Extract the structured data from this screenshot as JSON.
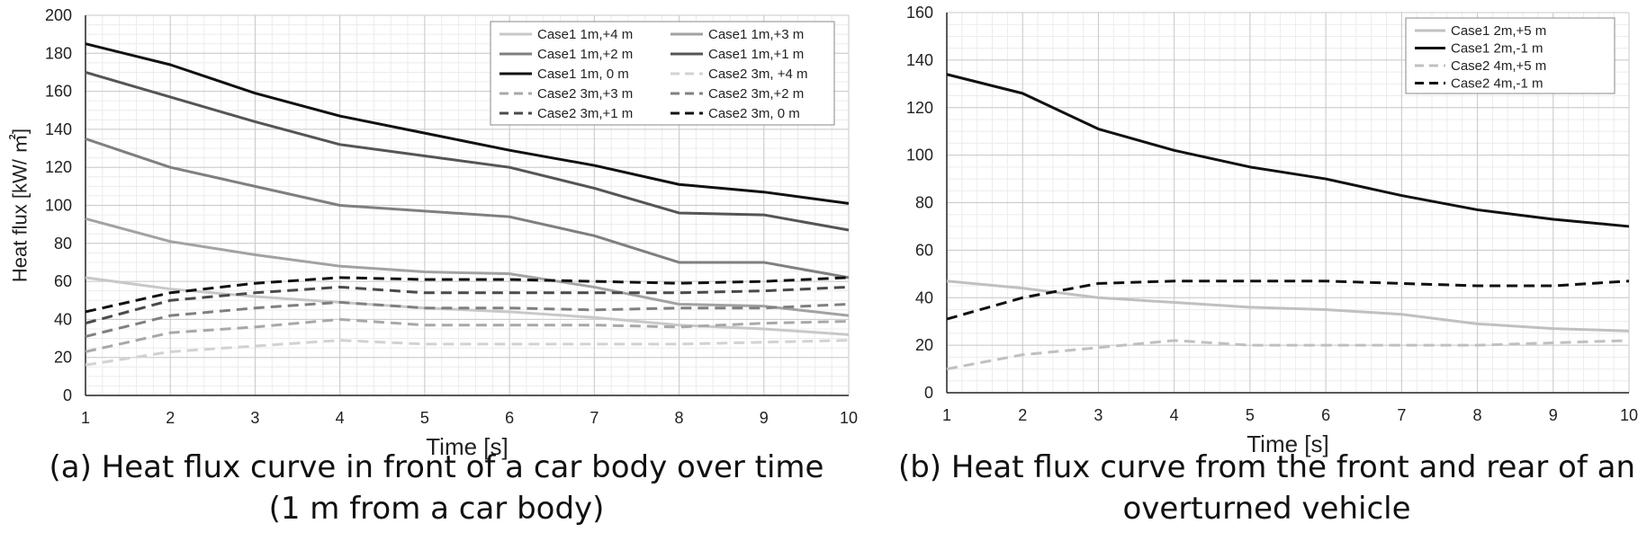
{
  "figure": {
    "caption_a_line1": "(a) Heat flux curve in front of a car body over time",
    "caption_a_line2": "(1 m from a car body)",
    "caption_b_line1": "(b) Heat flux curve from the front and rear of an",
    "caption_b_line2": "overturned vehicle"
  },
  "chart_data": [
    {
      "type": "line",
      "panel": "a",
      "xlabel": "Time [s]",
      "ylabel": "Heat flux [kW/ ㎡]",
      "xlim": [
        1,
        10
      ],
      "ylim": [
        0,
        200
      ],
      "xticks": [
        1,
        2,
        3,
        4,
        5,
        6,
        7,
        8,
        9,
        10
      ],
      "yticks": [
        0,
        20,
        40,
        60,
        80,
        100,
        120,
        140,
        160,
        180,
        200
      ],
      "grid": true,
      "legend_position": "top-right",
      "legend_columns": 2,
      "x": [
        1,
        2,
        3,
        4,
        5,
        6,
        7,
        8,
        9,
        10
      ],
      "series": [
        {
          "name": "Case1 1m,+4 m",
          "color": "#c8c8c8",
          "dash": "solid",
          "values": [
            62,
            56,
            52,
            49,
            46,
            44,
            41,
            37,
            35,
            32
          ]
        },
        {
          "name": "Case1 1m,+3 m",
          "color": "#a2a2a2",
          "dash": "solid",
          "values": [
            93,
            81,
            74,
            68,
            65,
            64,
            57,
            48,
            47,
            42
          ]
        },
        {
          "name": "Case1 1m,+2 m",
          "color": "#7f7f7f",
          "dash": "solid",
          "values": [
            135,
            120,
            110,
            100,
            97,
            94,
            84,
            70,
            70,
            62
          ]
        },
        {
          "name": "Case1 1m,+1 m",
          "color": "#555555",
          "dash": "solid",
          "values": [
            170,
            157,
            144,
            132,
            126,
            120,
            109,
            96,
            95,
            87
          ]
        },
        {
          "name": "Case1 1m, 0 m",
          "color": "#111111",
          "dash": "solid",
          "values": [
            185,
            174,
            159,
            147,
            138,
            129,
            121,
            111,
            107,
            101
          ]
        },
        {
          "name": "Case2 3m, +4 m",
          "color": "#d2d2d2",
          "dash": "dashed",
          "values": [
            16,
            23,
            26,
            29,
            27,
            27,
            27,
            27,
            28,
            29
          ]
        },
        {
          "name": "Case2 3m,+3 m",
          "color": "#a8a8a8",
          "dash": "dashed",
          "values": [
            23,
            33,
            36,
            40,
            37,
            37,
            37,
            36,
            38,
            39
          ]
        },
        {
          "name": "Case2 3m,+2 m",
          "color": "#808080",
          "dash": "dashed",
          "values": [
            31,
            42,
            46,
            49,
            46,
            46,
            45,
            46,
            46,
            48
          ]
        },
        {
          "name": "Case2 3m,+1 m",
          "color": "#4a4a4a",
          "dash": "dashed",
          "values": [
            38,
            50,
            54,
            57,
            54,
            54,
            54,
            54,
            55,
            57
          ]
        },
        {
          "name": "Case2 3m, 0 m",
          "color": "#111111",
          "dash": "dashed",
          "values": [
            44,
            54,
            59,
            62,
            61,
            61,
            60,
            59,
            60,
            62
          ]
        }
      ]
    },
    {
      "type": "line",
      "panel": "b",
      "xlabel": "Time [s]",
      "ylabel": "",
      "xlim": [
        1,
        10
      ],
      "ylim": [
        0,
        160
      ],
      "xticks": [
        1,
        2,
        3,
        4,
        5,
        6,
        7,
        8,
        9,
        10
      ],
      "yticks": [
        0,
        20,
        40,
        60,
        80,
        100,
        120,
        140,
        160
      ],
      "grid": true,
      "legend_position": "top-right",
      "legend_columns": 1,
      "x": [
        1,
        2,
        3,
        4,
        5,
        6,
        7,
        8,
        9,
        10
      ],
      "series": [
        {
          "name": "Case1 2m,+5 m",
          "color": "#c0c0c0",
          "dash": "solid",
          "values": [
            47,
            44,
            40,
            38,
            36,
            35,
            33,
            29,
            27,
            26
          ]
        },
        {
          "name": "Case1 2m,-1 m",
          "color": "#111111",
          "dash": "solid",
          "values": [
            134,
            126,
            111,
            102,
            95,
            90,
            83,
            77,
            73,
            70
          ]
        },
        {
          "name": "Case2 4m,+5 m",
          "color": "#c0c0c0",
          "dash": "dashed",
          "values": [
            10,
            16,
            19,
            22,
            20,
            20,
            20,
            20,
            21,
            22
          ]
        },
        {
          "name": "Case2 4m,-1 m",
          "color": "#111111",
          "dash": "dashed",
          "values": [
            31,
            40,
            46,
            47,
            47,
            47,
            46,
            45,
            45,
            47
          ]
        }
      ]
    }
  ]
}
